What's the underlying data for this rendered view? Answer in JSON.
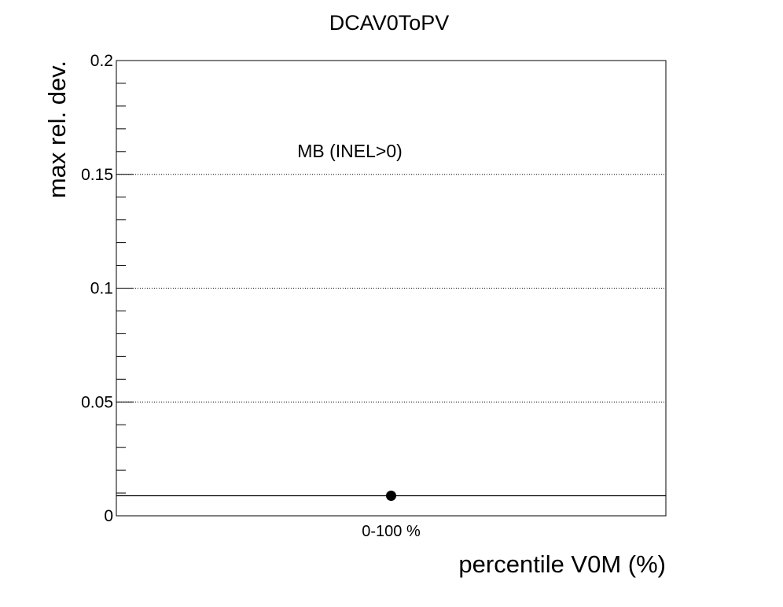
{
  "chart_data": {
    "type": "scatter",
    "title": "DCAV0ToPV",
    "xlabel": "percentile V0M (%)",
    "ylabel": "max rel. dev.",
    "categories": [
      "0-100 %"
    ],
    "ylim": [
      0,
      0.2
    ],
    "yticks": [
      {
        "value": 0,
        "label": "0"
      },
      {
        "value": 0.05,
        "label": "0.05"
      },
      {
        "value": 0.1,
        "label": "0.1"
      },
      {
        "value": 0.15,
        "label": "0.15"
      },
      {
        "value": 0.2,
        "label": "0.2"
      }
    ],
    "grid": "horizontal dotted",
    "series": [
      {
        "values": [
          0.0088
        ]
      }
    ],
    "hline": 0.0088,
    "annotation": "MB (INEL>0)",
    "marker_color": "#000000"
  }
}
